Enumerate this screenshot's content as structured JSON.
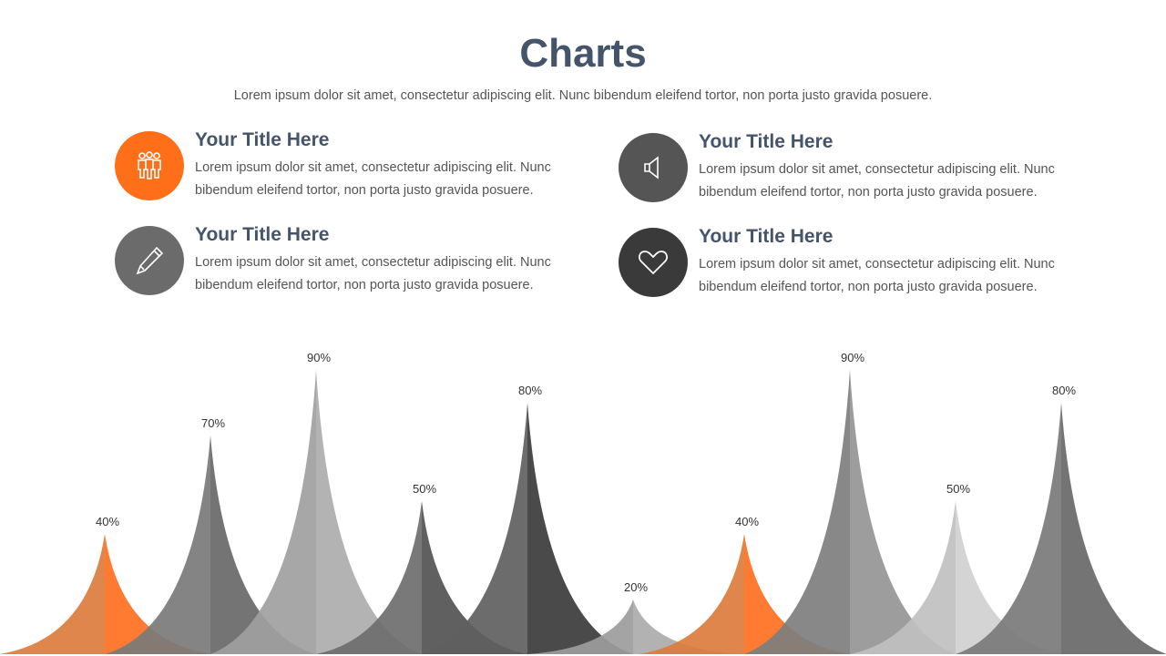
{
  "header": {
    "title": "Charts",
    "subtitle": "Lorem ipsum dolor sit amet, consectetur adipiscing elit. Nunc bibendum eleifend tortor, non porta justo gravida posuere."
  },
  "items": [
    {
      "title": "Your Title Here",
      "text": "Lorem ipsum dolor sit amet, consectetur adipiscing elit. Nunc bibendum eleifend tortor, non porta justo gravida posuere.",
      "icon": "people-icon",
      "color": "#FF6F1A"
    },
    {
      "title": "Your Title Here",
      "text": "Lorem ipsum dolor sit amet, consectetur adipiscing elit. Nunc bibendum eleifend tortor, non porta justo gravida posuere.",
      "icon": "speaker-icon",
      "color": "#555555"
    },
    {
      "title": "Your Title Here",
      "text": "Lorem ipsum dolor sit amet, consectetur adipiscing elit. Nunc bibendum eleifend tortor, non porta justo gravida posuere.",
      "icon": "pencil-icon",
      "color": "#6B6B6B"
    },
    {
      "title": "Your Title Here",
      "text": "Lorem ipsum dolor sit amet, consectetur adipiscing elit. Nunc bibendum eleifend tortor, non porta justo gravida posuere.",
      "icon": "heart-icon",
      "color": "#3A3A3A"
    }
  ],
  "chart_data": {
    "type": "bar",
    "values": [
      40,
      70,
      90,
      50,
      80,
      20,
      40,
      90,
      50,
      80
    ],
    "labels": [
      "40%",
      "70%",
      "90%",
      "50%",
      "80%",
      "20%",
      "40%",
      "90%",
      "50%",
      "80%"
    ],
    "ylim": [
      0,
      100
    ],
    "colors": [
      [
        "#DC7C3E",
        "#FF701F"
      ],
      [
        "#7A7A7A",
        "#686868"
      ],
      [
        "#A0A0A0",
        "#ADADAD"
      ],
      [
        "#6E6E6E",
        "#525252"
      ],
      [
        "#606060",
        "#3B3B3B"
      ],
      [
        "#9C9C9C",
        "#ABABAB"
      ],
      [
        "#DC7C3E",
        "#FF701F"
      ],
      [
        "#7E7E7E",
        "#959595"
      ],
      [
        "#C0C0C0",
        "#D0D0D0"
      ],
      [
        "#7A7A7A",
        "#686868"
      ]
    ]
  }
}
